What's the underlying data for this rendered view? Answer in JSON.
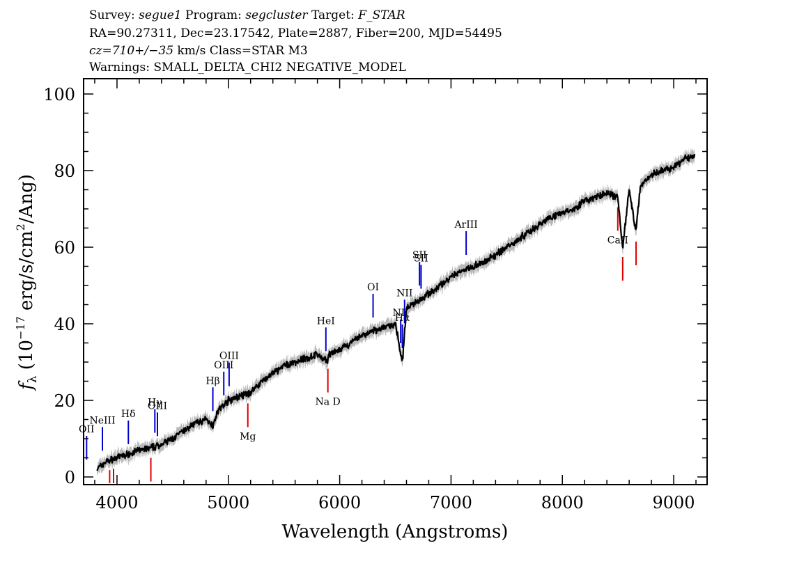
{
  "header": {
    "line1": {
      "survey_label": "Survey:",
      "survey_value": "segue1",
      "program_label": "Program:",
      "program_value": "segcluster",
      "target_label": "Target:",
      "target_value": "F_STAR"
    },
    "line2": "RA=90.27311, Dec=23.17542, Plate=2887, Fiber=200, MJD=54495",
    "line3": {
      "cz_value": "cz=710+/−35",
      "cz_rest": " km/s Class=STAR M3"
    },
    "line4": "Warnings: SMALL_DELTA_CHI2 NEGATIVE_MODEL"
  },
  "chart_data": {
    "type": "line",
    "xlabel": "Wavelength (Angstroms)",
    "ylabel_parts": {
      "f": "f",
      "sub": "λ",
      "pre": " (10",
      "exp1": "−17",
      "mid": " erg/s/cm",
      "exp2": "2",
      "post": "/Ang)"
    },
    "xlim": [
      3700,
      9300
    ],
    "ylim": [
      -2,
      104
    ],
    "xticks": [
      4000,
      5000,
      6000,
      7000,
      8000,
      9000
    ],
    "xtick_labels": [
      "4000",
      "5000",
      "6000",
      "7000",
      "8000",
      "9000"
    ],
    "yticks": [
      0,
      20,
      40,
      60,
      80,
      100
    ],
    "ytick_labels": [
      "0",
      "20",
      "40",
      "60",
      "80",
      "100"
    ],
    "grid": false,
    "series": [
      {
        "style": "black",
        "x": [
          3820,
          3900,
          4000,
          4100,
          4200,
          4300,
          4400,
          4500,
          4600,
          4700,
          4800,
          4860,
          4900,
          5000,
          5100,
          5200,
          5300,
          5400,
          5500,
          5600,
          5700,
          5800,
          5890,
          5900,
          6000,
          6100,
          6200,
          6300,
          6400,
          6500,
          6563,
          6600,
          6700,
          6800,
          6870,
          6900,
          7000,
          7100,
          7200,
          7300,
          7400,
          7500,
          7600,
          7700,
          7800,
          7900,
          8000,
          8100,
          8200,
          8300,
          8400,
          8498,
          8542,
          8600,
          8662,
          8700,
          8800,
          8900,
          9000,
          9100,
          9190
        ],
        "y": [
          2,
          4,
          5,
          6,
          7,
          7.5,
          8.5,
          10,
          12,
          14,
          15,
          13.5,
          17,
          20,
          21,
          22,
          25,
          27,
          29,
          30,
          31,
          32,
          30,
          32,
          33,
          35,
          37,
          38,
          39,
          40,
          30,
          44,
          46,
          48,
          49,
          50,
          52,
          54,
          55,
          56,
          58,
          60,
          62,
          64,
          66,
          68,
          69,
          70,
          72,
          73,
          74,
          73,
          60,
          75,
          64,
          76,
          79,
          80,
          81,
          83,
          84
        ]
      }
    ],
    "emission_lines": [
      {
        "label": "OII",
        "x": 3727
      },
      {
        "label": "NeIII",
        "x": 3869
      },
      {
        "label": "Hδ",
        "x": 4102
      },
      {
        "label": "Hγ",
        "x": 4340
      },
      {
        "label": "OIII",
        "x": 4363
      },
      {
        "label": "Hβ",
        "x": 4861
      },
      {
        "label": "OIII",
        "x": 4959
      },
      {
        "label": "OIII",
        "x": 5007
      },
      {
        "label": "HeI",
        "x": 5876
      },
      {
        "label": "OI",
        "x": 6300
      },
      {
        "label": "NII",
        "x": 6548
      },
      {
        "label": "Hα",
        "x": 6563
      },
      {
        "label": "NII",
        "x": 6583
      },
      {
        "label": "SII",
        "x": 6717
      },
      {
        "label": "SII",
        "x": 6731
      },
      {
        "label": "ArIII",
        "x": 7136
      }
    ],
    "absorption_lines": [
      {
        "label": "",
        "x": 3934
      },
      {
        "label": "",
        "x": 3969
      },
      {
        "label": "",
        "x": 4304
      },
      {
        "label": "Mg",
        "x": 5175
      },
      {
        "label": "Na D",
        "x": 5894
      },
      {
        "label": "CaII",
        "x": 8498
      },
      {
        "label": "",
        "x": 8542
      },
      {
        "label": "",
        "x": 8662
      }
    ],
    "colors": {
      "spectrum": "#000000",
      "error_band": "#b8b8b8",
      "emission": "#0000cc",
      "absorption": "#dd0000"
    }
  }
}
